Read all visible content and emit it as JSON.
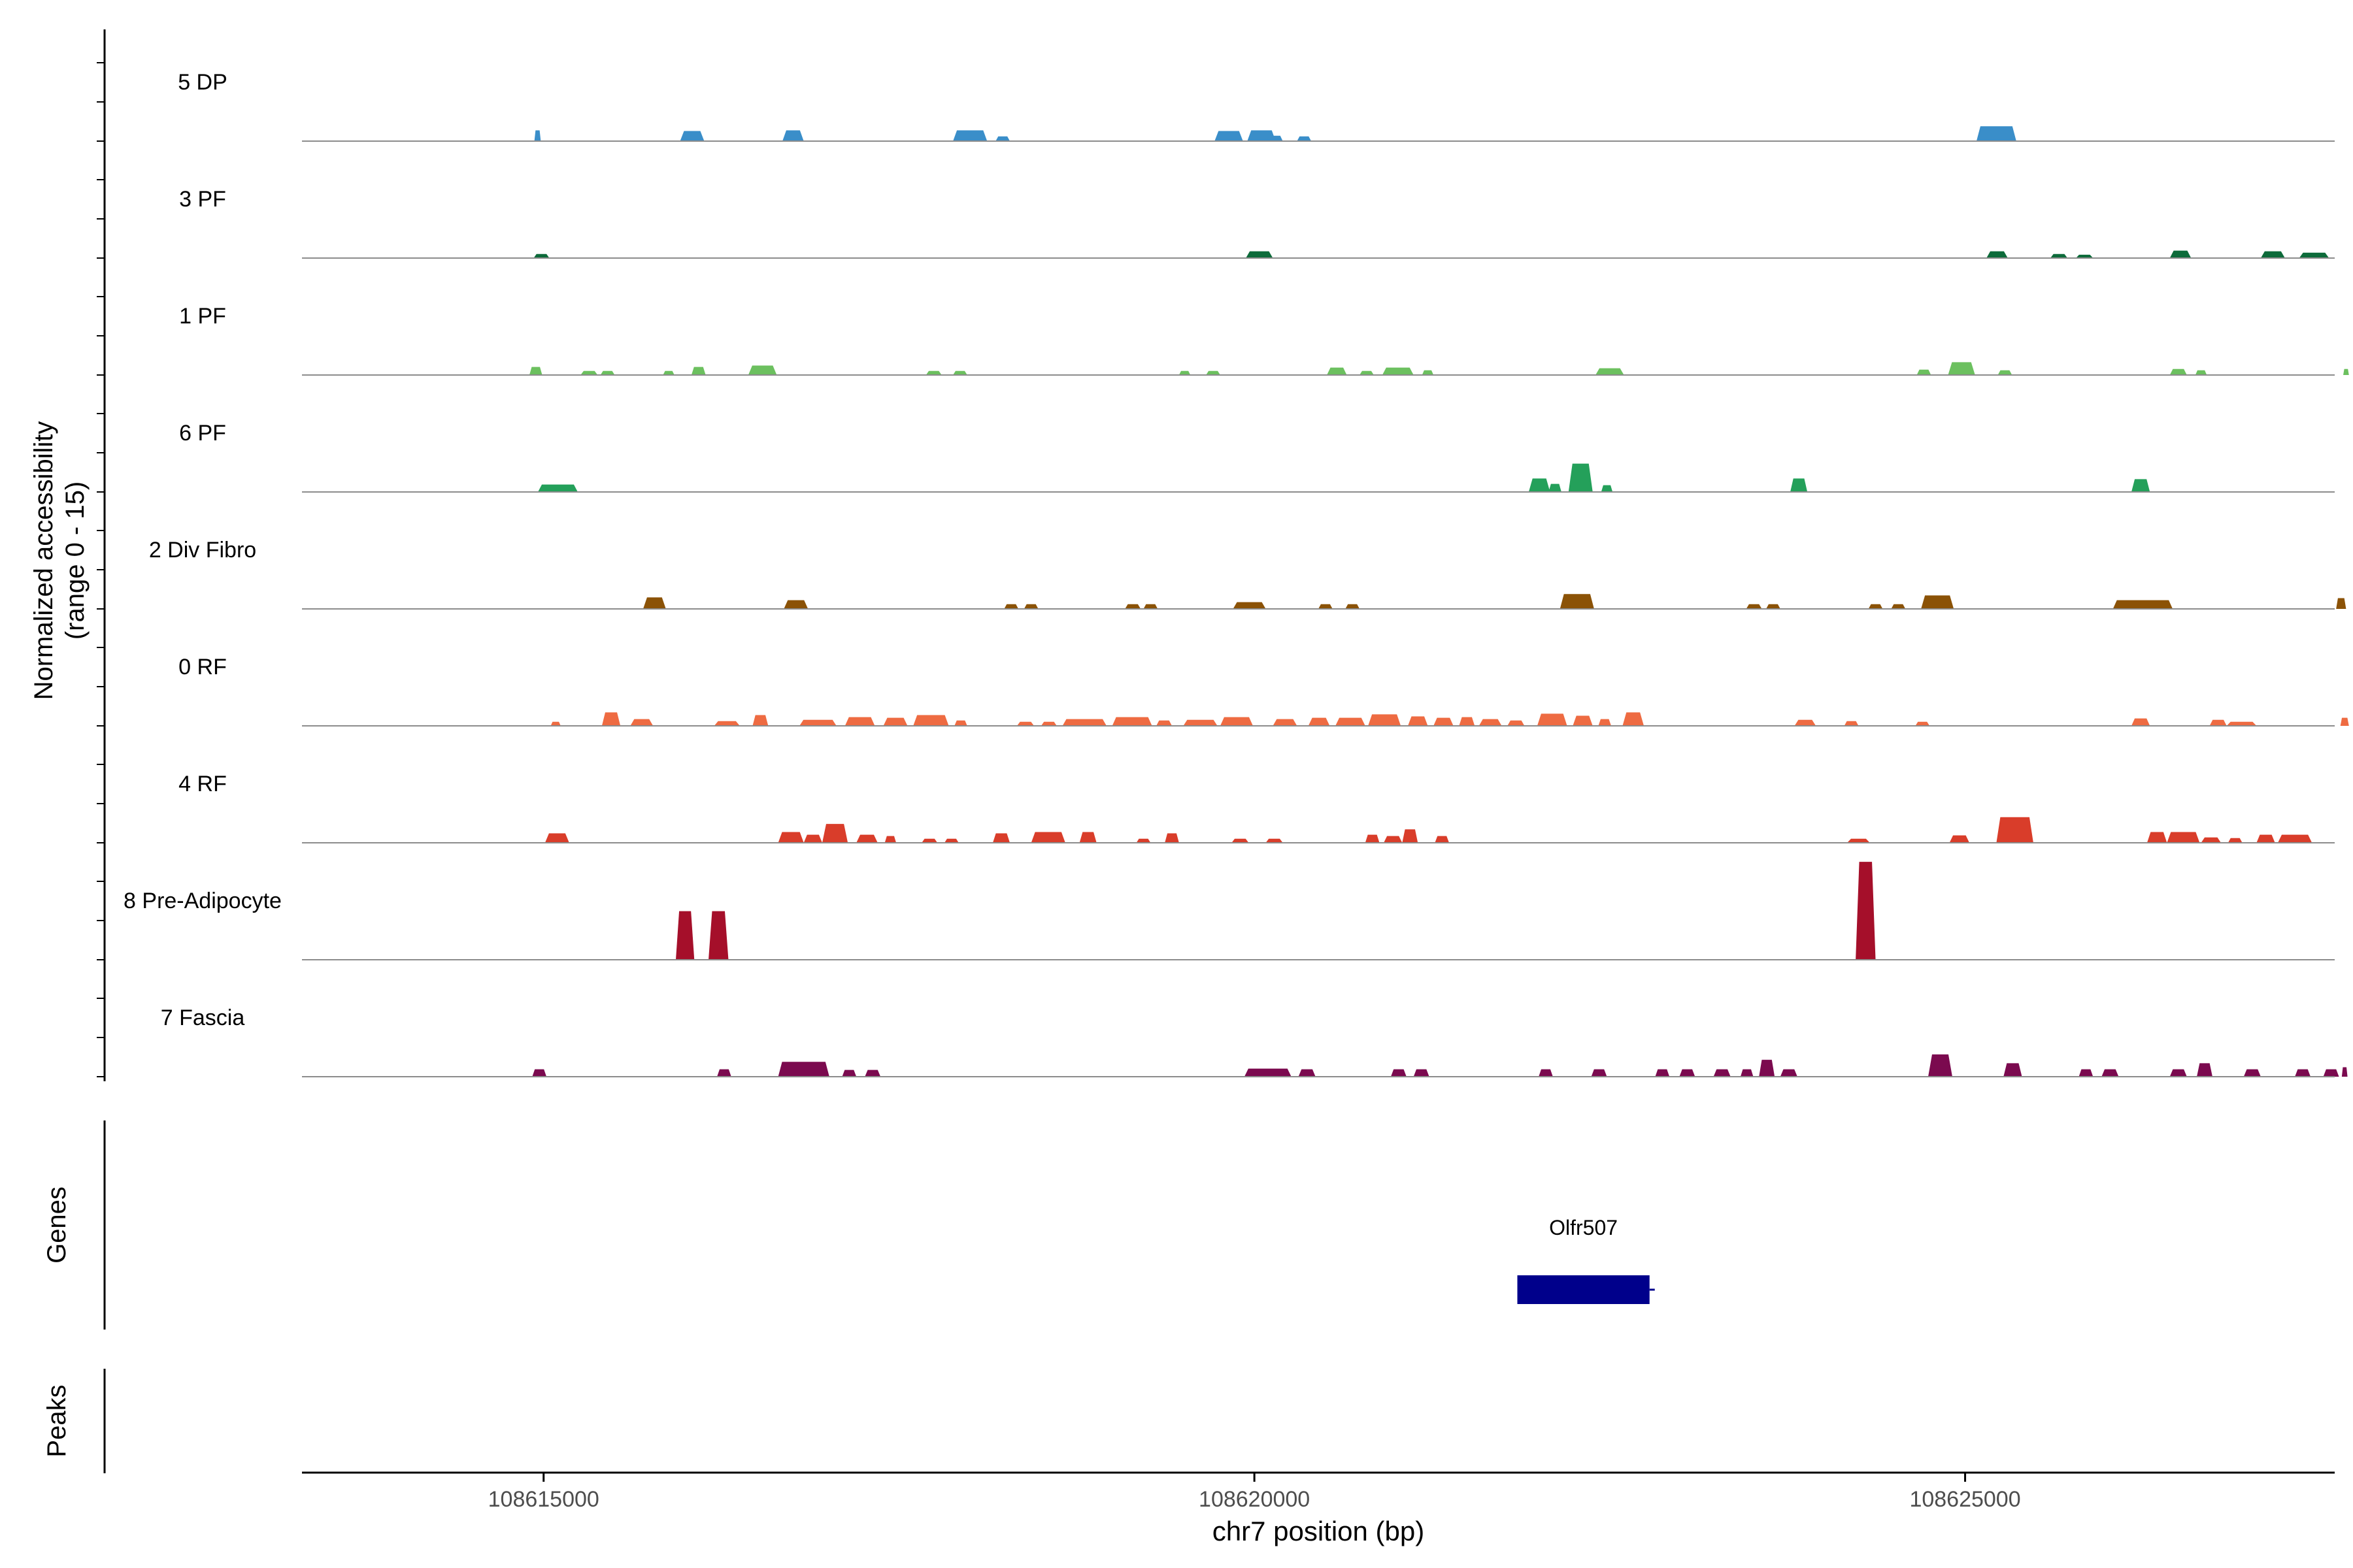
{
  "chart_data": {
    "type": "area",
    "region": {
      "chrom": "chr7",
      "start": 108613300,
      "end": 108627600
    },
    "y_axis_label": "Normalized accessibility",
    "y_axis_sublabel": "(range 0 - 15)",
    "y_range": [
      0,
      15
    ],
    "xlabel": "chr7 position (bp)",
    "xticks": [
      108615000,
      108620000,
      108625000
    ],
    "xtick_labels": [
      "108615000",
      "108620000",
      "108625000"
    ],
    "tracks": [
      {
        "name": "5 DP",
        "color": "#3a8ec9",
        "peaks": [
          [
            108614935,
            108614980,
            1.6
          ],
          [
            108615960,
            108616130,
            1.5
          ],
          [
            108616680,
            108616830,
            1.6
          ],
          [
            108617880,
            108618120,
            1.6
          ],
          [
            108618180,
            108618280,
            0.7
          ],
          [
            108619720,
            108619920,
            1.5
          ],
          [
            108619950,
            108620150,
            1.6
          ],
          [
            108620100,
            108620200,
            0.8
          ],
          [
            108620300,
            108620400,
            0.7
          ],
          [
            108625080,
            108625360,
            2.2
          ]
        ]
      },
      {
        "name": "3 PF",
        "color": "#0d6b3a",
        "peaks": [
          [
            108614930,
            108615040,
            0.6
          ],
          [
            108619940,
            108620130,
            1.0
          ],
          [
            108625150,
            108625300,
            1.0
          ],
          [
            108625600,
            108625720,
            0.6
          ],
          [
            108625780,
            108625900,
            0.5
          ],
          [
            108626440,
            108626590,
            1.1
          ],
          [
            108627080,
            108627250,
            1.0
          ],
          [
            108627350,
            108627560,
            0.8
          ]
        ]
      },
      {
        "name": "1 PF",
        "color": "#6cc05f",
        "peaks": [
          [
            108614900,
            108614990,
            1.2
          ],
          [
            108615260,
            108615380,
            0.6
          ],
          [
            108615400,
            108615500,
            0.6
          ],
          [
            108615840,
            108615920,
            0.6
          ],
          [
            108616040,
            108616140,
            1.2
          ],
          [
            108616440,
            108616640,
            1.4
          ],
          [
            108617690,
            108617800,
            0.6
          ],
          [
            108617880,
            108617980,
            0.6
          ],
          [
            108619470,
            108619550,
            0.6
          ],
          [
            108619660,
            108619760,
            0.6
          ],
          [
            108620510,
            108620650,
            1.1
          ],
          [
            108620740,
            108620840,
            0.6
          ],
          [
            108620900,
            108621120,
            1.1
          ],
          [
            108621180,
            108621260,
            0.7
          ],
          [
            108622400,
            108622600,
            1.0
          ],
          [
            108624660,
            108624760,
            0.8
          ],
          [
            108624880,
            108625070,
            1.9
          ],
          [
            108625230,
            108625330,
            0.7
          ],
          [
            108626440,
            108626560,
            0.9
          ],
          [
            108626620,
            108626700,
            0.7
          ],
          [
            108627660,
            108627700,
            0.9
          ]
        ]
      },
      {
        "name": "6 PF",
        "color": "#24a05a",
        "peaks": [
          [
            108614960,
            108615240,
            1.1
          ],
          [
            108621930,
            108622080,
            2.0
          ],
          [
            108622070,
            108622160,
            1.2
          ],
          [
            108622210,
            108622380,
            4.2
          ],
          [
            108622440,
            108622520,
            1.0
          ],
          [
            108623770,
            108623890,
            2.0
          ],
          [
            108626170,
            108626300,
            1.9
          ]
        ]
      },
      {
        "name": "2 Div Fibro",
        "color": "#8b5206",
        "peaks": [
          [
            108615700,
            108615860,
            1.7
          ],
          [
            108616690,
            108616860,
            1.3
          ],
          [
            108618240,
            108618340,
            0.7
          ],
          [
            108618380,
            108618480,
            0.7
          ],
          [
            108619090,
            108619200,
            0.7
          ],
          [
            108619220,
            108619320,
            0.7
          ],
          [
            108619850,
            108620080,
            1.0
          ],
          [
            108620450,
            108620550,
            0.7
          ],
          [
            108620640,
            108620740,
            0.7
          ],
          [
            108622150,
            108622390,
            2.2
          ],
          [
            108623460,
            108623570,
            0.7
          ],
          [
            108623600,
            108623700,
            0.7
          ],
          [
            108624320,
            108624420,
            0.7
          ],
          [
            108624480,
            108624580,
            0.7
          ],
          [
            108624690,
            108624920,
            2.0
          ],
          [
            108626040,
            108626460,
            1.3
          ],
          [
            108627610,
            108627680,
            1.6
          ]
        ]
      },
      {
        "name": "0 RF",
        "color": "#ee6b42",
        "peaks": [
          [
            108615050,
            108615120,
            0.6
          ],
          [
            108615410,
            108615540,
            2.0
          ],
          [
            108615610,
            108615770,
            1.0
          ],
          [
            108616200,
            108616380,
            0.7
          ],
          [
            108616470,
            108616580,
            1.6
          ],
          [
            108616800,
            108617060,
            0.9
          ],
          [
            108617120,
            108617330,
            1.3
          ],
          [
            108617390,
            108617560,
            1.2
          ],
          [
            108617600,
            108617850,
            1.6
          ],
          [
            108617890,
            108617980,
            0.8
          ],
          [
            108618330,
            108618450,
            0.6
          ],
          [
            108618500,
            108618610,
            0.6
          ],
          [
            108618650,
            108618960,
            1.0
          ],
          [
            108619000,
            108619280,
            1.3
          ],
          [
            108619310,
            108619420,
            0.8
          ],
          [
            108619500,
            108619740,
            0.9
          ],
          [
            108619760,
            108619990,
            1.3
          ],
          [
            108620130,
            108620300,
            1.0
          ],
          [
            108620380,
            108620530,
            1.2
          ],
          [
            108620570,
            108620780,
            1.2
          ],
          [
            108620800,
            108621030,
            1.7
          ],
          [
            108621080,
            108621220,
            1.4
          ],
          [
            108621260,
            108621400,
            1.2
          ],
          [
            108621440,
            108621550,
            1.3
          ],
          [
            108621580,
            108621740,
            1.0
          ],
          [
            108621780,
            108621900,
            0.8
          ],
          [
            108621990,
            108622200,
            1.8
          ],
          [
            108622240,
            108622380,
            1.5
          ],
          [
            108622420,
            108622510,
            1.0
          ],
          [
            108622590,
            108622740,
            2.0
          ],
          [
            108623800,
            108623950,
            0.9
          ],
          [
            108624150,
            108624250,
            0.7
          ],
          [
            108624650,
            108624750,
            0.6
          ],
          [
            108626170,
            108626300,
            1.1
          ],
          [
            108626720,
            108626840,
            0.9
          ],
          [
            108626840,
            108627050,
            0.6
          ],
          [
            108627640,
            108627700,
            1.2
          ]
        ]
      },
      {
        "name": "4 RF",
        "color": "#d93d2a",
        "peaks": [
          [
            108615010,
            108615180,
            1.4
          ],
          [
            108616650,
            108616830,
            1.6
          ],
          [
            108616830,
            108616960,
            1.2
          ],
          [
            108616960,
            108617140,
            2.8
          ],
          [
            108617200,
            108617350,
            1.2
          ],
          [
            108617400,
            108617480,
            1.0
          ],
          [
            108617660,
            108617770,
            0.6
          ],
          [
            108617820,
            108617920,
            0.6
          ],
          [
            108618160,
            108618280,
            1.4
          ],
          [
            108618430,
            108618670,
            1.6
          ],
          [
            108618770,
            108618890,
            1.6
          ],
          [
            108619170,
            108619270,
            0.6
          ],
          [
            108619370,
            108619470,
            1.4
          ],
          [
            108619840,
            108619960,
            0.6
          ],
          [
            108620080,
            108620200,
            0.6
          ],
          [
            108620780,
            108620880,
            1.2
          ],
          [
            108620910,
            108621040,
            1.0
          ],
          [
            108621040,
            108621150,
            2.0
          ],
          [
            108621270,
            108621370,
            1.0
          ],
          [
            108624170,
            108624330,
            0.6
          ],
          [
            108624890,
            108625030,
            1.1
          ],
          [
            108625220,
            108625480,
            3.8
          ],
          [
            108626280,
            108626420,
            1.6
          ],
          [
            108626420,
            108626650,
            1.6
          ],
          [
            108626660,
            108626800,
            0.8
          ],
          [
            108626850,
            108626950,
            0.7
          ],
          [
            108627050,
            108627180,
            1.2
          ],
          [
            108627200,
            108627440,
            1.2
          ]
        ]
      },
      {
        "name": "8 Pre-Adipocyte",
        "color": "#a50f2a",
        "peaks": [
          [
            108615930,
            108616060,
            7.2
          ],
          [
            108616160,
            108616300,
            7.2
          ],
          [
            108624230,
            108624370,
            14.5
          ]
        ]
      },
      {
        "name": "7 Fascia",
        "color": "#7b0a4f",
        "peaks": [
          [
            108614920,
            108615020,
            1.1
          ],
          [
            108616220,
            108616320,
            1.1
          ],
          [
            108616650,
            108617010,
            2.2
          ],
          [
            108617100,
            108617200,
            1.0
          ],
          [
            108617260,
            108617370,
            1.0
          ],
          [
            108619930,
            108620260,
            1.2
          ],
          [
            108620310,
            108620430,
            1.1
          ],
          [
            108620960,
            108621070,
            1.1
          ],
          [
            108621120,
            108621230,
            1.1
          ],
          [
            108622000,
            108622100,
            1.1
          ],
          [
            108622370,
            108622480,
            1.1
          ],
          [
            108622820,
            108622920,
            1.1
          ],
          [
            108622990,
            108623100,
            1.1
          ],
          [
            108623230,
            108623350,
            1.1
          ],
          [
            108623420,
            108623510,
            1.1
          ],
          [
            108623550,
            108623660,
            2.5
          ],
          [
            108623700,
            108623820,
            1.1
          ],
          [
            108624740,
            108624910,
            3.3
          ],
          [
            108625270,
            108625400,
            2.0
          ],
          [
            108625800,
            108625900,
            1.1
          ],
          [
            108625960,
            108626080,
            1.1
          ],
          [
            108626440,
            108626560,
            1.1
          ],
          [
            108626630,
            108626740,
            2.0
          ],
          [
            108626960,
            108627080,
            1.1
          ],
          [
            108627320,
            108627430,
            1.1
          ],
          [
            108627520,
            108627630,
            1.1
          ],
          [
            108627650,
            108627690,
            1.4
          ]
        ]
      }
    ],
    "genes_label": "Genes",
    "genes": [
      {
        "name": "Olfr507",
        "start": 108621850,
        "end": 108622780,
        "strand": "+",
        "color": "#00008b"
      }
    ],
    "peaks_label": "Peaks"
  }
}
